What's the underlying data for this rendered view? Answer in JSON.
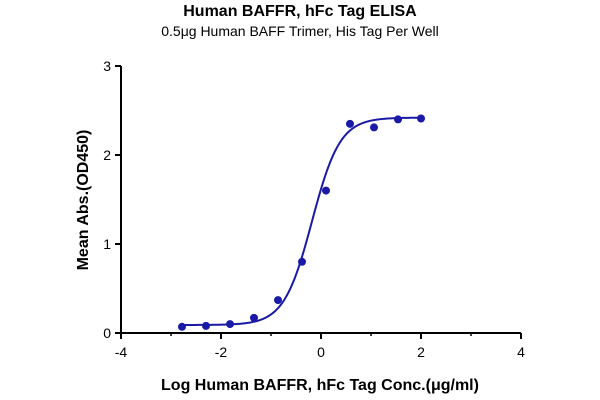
{
  "chart_data": {
    "type": "scatter",
    "title": "Human BAFFR, hFc Tag ELISA",
    "subtitle": "0.5μg Human BAFF Trimer, His Tag Per Well",
    "xlabel": "Log Human BAFFR, hFc Tag Conc.(μg/ml)",
    "ylabel": "Mean Abs.(OD450)",
    "xlim": [
      -4,
      4
    ],
    "ylim": [
      0,
      3
    ],
    "x_ticks": [
      "-4",
      "-2",
      "0",
      "2",
      "4"
    ],
    "y_ticks": [
      "0",
      "1",
      "2",
      "3"
    ],
    "grid": false,
    "series": [
      {
        "x": [
          -2.78,
          -2.3,
          -1.82,
          -1.34,
          -0.86,
          -0.38,
          0.1,
          0.58,
          1.06,
          1.54,
          2.0
        ],
        "y": [
          0.07,
          0.08,
          0.1,
          0.17,
          0.37,
          0.8,
          1.6,
          2.35,
          2.31,
          2.4,
          2.41
        ]
      }
    ],
    "fit": {
      "model": "4PL",
      "bottom": 0.09,
      "top": 2.42,
      "logEC50": -0.18,
      "hill": 1.55,
      "x_range": [
        -2.78,
        2.0
      ]
    },
    "colors": {
      "series": "#1a1aa6",
      "axis": "#000000"
    }
  }
}
